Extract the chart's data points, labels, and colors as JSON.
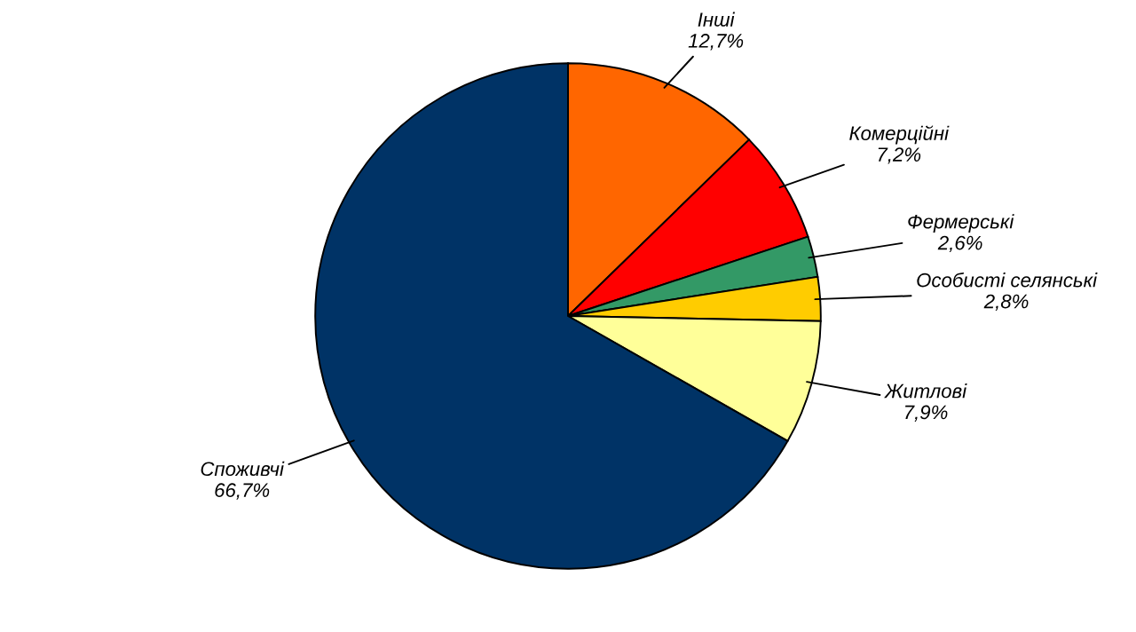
{
  "chart_data": {
    "type": "pie",
    "categories": [
      "Інші",
      "Комерційні",
      "Фермерські",
      "Особисті селянські",
      "Житлові",
      "Споживчі"
    ],
    "values": [
      12.7,
      7.2,
      2.6,
      2.8,
      7.9,
      66.7
    ],
    "colors": [
      "#ff6600",
      "#ff0000",
      "#339966",
      "#ffcc00",
      "#ffff99",
      "#003366"
    ],
    "value_labels": [
      "12,7%",
      "7,2%",
      "2,6%",
      "2,8%",
      "7,9%",
      "66,7%"
    ],
    "legend": false
  }
}
